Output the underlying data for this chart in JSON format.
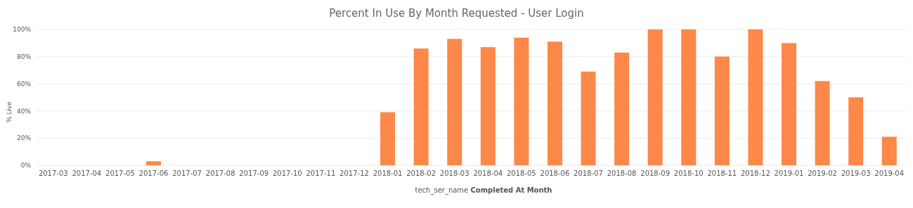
{
  "chart_data": {
    "type": "bar",
    "title": "Percent In Use By Month Requested - User Login",
    "xlabel": "tech_ser_name Completed At Month",
    "ylabel": "% Live",
    "categories": [
      "2017-03",
      "2017-04",
      "2017-05",
      "2017-06",
      "2017-07",
      "2017-08",
      "2017-09",
      "2017-10",
      "2017-11",
      "2017-12",
      "2018-01",
      "2018-02",
      "2018-03",
      "2018-04",
      "2018-05",
      "2018-06",
      "2018-07",
      "2018-08",
      "2018-09",
      "2018-10",
      "2018-11",
      "2018-12",
      "2019-01",
      "2019-02",
      "2019-03",
      "2019-04"
    ],
    "values": [
      0,
      0,
      0,
      3,
      0,
      0,
      0,
      0,
      0,
      0,
      39,
      86,
      93,
      87,
      94,
      91,
      69,
      83,
      100,
      100,
      80,
      100,
      90,
      62,
      50,
      21
    ],
    "color": "#fd8849",
    "ylim": [
      0,
      100
    ],
    "yticks": [
      {
        "value": 0,
        "label": "0%"
      },
      {
        "value": 20,
        "label": "20%"
      },
      {
        "value": 40,
        "label": "40%"
      },
      {
        "value": 60,
        "label": "60%"
      },
      {
        "value": 80,
        "label": "80%"
      },
      {
        "value": 100,
        "label": "100%"
      }
    ],
    "grid": "y",
    "legend": false
  }
}
